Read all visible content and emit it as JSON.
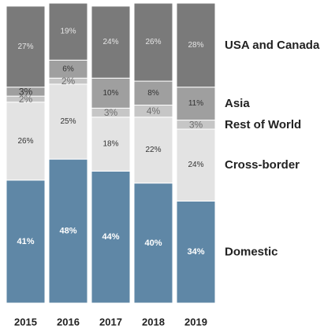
{
  "chart_data": {
    "type": "bar",
    "stacked": true,
    "normalized_percent": true,
    "title": "",
    "xlabel": "",
    "ylabel": "",
    "ylim": [
      0,
      100
    ],
    "grid": false,
    "legend_placement": "right",
    "categories": [
      "2015",
      "2016",
      "2017",
      "2018",
      "2019"
    ],
    "series": [
      {
        "name": "Domestic",
        "values": [
          41,
          48,
          44,
          40,
          34
        ],
        "labels": [
          "41%",
          "48%",
          "44%",
          "40%",
          "34%"
        ],
        "color": "#5f87a6",
        "label_color": "#ffffff"
      },
      {
        "name": "Cross-border",
        "values": [
          26,
          25,
          18,
          22,
          24
        ],
        "labels": [
          "26%",
          "25%",
          "18%",
          "22%",
          "24%"
        ],
        "color": "#e3e3e3",
        "label_color": "#333333"
      },
      {
        "name": "Rest of World",
        "values": [
          2,
          2,
          3,
          4,
          3
        ],
        "labels": [
          "2%",
          "2%",
          "3%",
          "4%",
          "3%"
        ],
        "color": "#c6c6c6",
        "label_color": "#6f6f6f"
      },
      {
        "name": "Asia",
        "values": [
          3,
          6,
          10,
          8,
          11
        ],
        "labels": [
          "3%",
          "6%",
          "10%",
          "8%",
          "11%"
        ],
        "color": "#9f9f9f",
        "label_color": "#333333"
      },
      {
        "name": "USA and Canada",
        "values": [
          27,
          19,
          24,
          26,
          28
        ],
        "labels": [
          "27%",
          "19%",
          "24%",
          "26%",
          "28%"
        ],
        "color": "#7a7a7a",
        "label_color": "#e6e6e6"
      }
    ]
  }
}
